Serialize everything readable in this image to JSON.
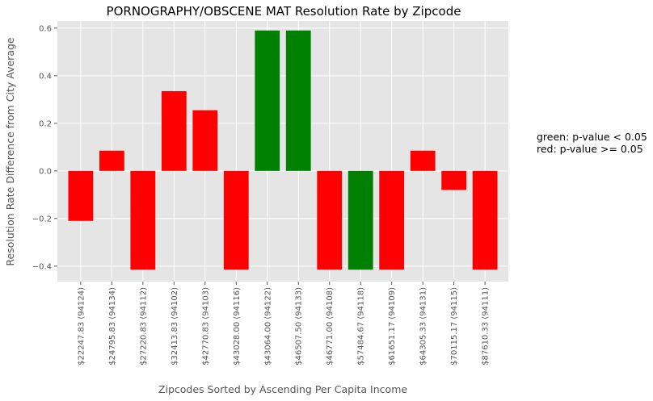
{
  "chart_data": {
    "type": "bar",
    "title": "PORNOGRAPHY/OBSCENE MAT Resolution Rate by Zipcode",
    "xlabel": "Zipcodes Sorted by Ascending Per Capita Income",
    "ylabel": "Resolution Rate Difference from City Average",
    "categories": [
      "$22247.83 (94124)",
      "$24795.83 (94134)",
      "$27220.83 (94112)",
      "$32413.83 (94102)",
      "$42770.83 (94103)",
      "$43028.00 (94116)",
      "$43064.00 (94122)",
      "$46507.50 (94133)",
      "$46771.00 (94108)",
      "$57484.67 (94118)",
      "$61651.17 (94109)",
      "$64305.33 (94131)",
      "$70115.17 (94115)",
      "$87610.33 (94111)"
    ],
    "values": [
      -0.21,
      0.085,
      -0.415,
      0.335,
      0.255,
      -0.415,
      0.59,
      0.59,
      -0.415,
      -0.415,
      -0.415,
      0.085,
      -0.08,
      -0.415
    ],
    "significant": [
      false,
      false,
      false,
      false,
      false,
      false,
      true,
      true,
      false,
      true,
      false,
      false,
      false,
      false
    ],
    "colors": {
      "significant": "#008000",
      "not_significant": "#ff0000",
      "plot_background": "#e5e5e5",
      "grid": "#ffffff"
    },
    "ylim": [
      -0.465,
      0.63
    ],
    "yticks": [
      -0.4,
      -0.2,
      0.0,
      0.2,
      0.4,
      0.6
    ],
    "ytick_labels": [
      "−0.4",
      "−0.2",
      "0.0",
      "0.2",
      "0.4",
      "0.6"
    ],
    "grid": true,
    "annotation": {
      "lines": [
        "green: p-value < 0.05",
        "red: p-value >= 0.05"
      ],
      "placement": "right"
    }
  }
}
